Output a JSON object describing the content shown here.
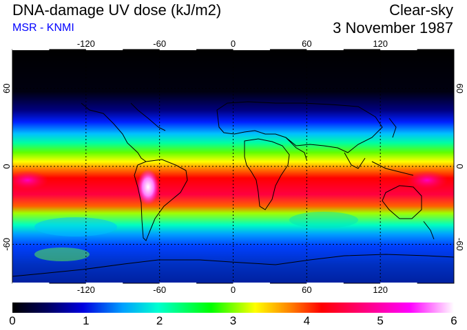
{
  "header": {
    "title": "DNA-damage UV dose (kJ/m2)",
    "subtitle": "MSR - KNMI",
    "condition": "Clear-sky",
    "date": "3 November 1987"
  },
  "colors": {
    "subtitle": "#0000ff",
    "scale": [
      "#000000",
      "#000060",
      "#0000e0",
      "#00a0ff",
      "#00ffd0",
      "#00ff00",
      "#ffff00",
      "#ff8000",
      "#ff0000",
      "#ff0080",
      "#ff00ff",
      "#ffffff"
    ]
  },
  "map": {
    "lon_ticks": [
      -120,
      -60,
      0,
      60,
      120
    ],
    "lon_tick_labels": [
      "-120",
      "-60",
      "0",
      "60",
      "120"
    ],
    "lat_ticks": [
      60,
      0,
      -60
    ],
    "lat_tick_labels": [
      "60",
      "0",
      "-60"
    ],
    "lon_range": [
      -180,
      180
    ],
    "lat_range": [
      -90,
      90
    ],
    "gridlines": "dotted"
  },
  "colorbar": {
    "min": 0,
    "max": 6,
    "labels": [
      "0",
      "1",
      "2",
      "3",
      "4",
      "5",
      "6"
    ]
  }
}
